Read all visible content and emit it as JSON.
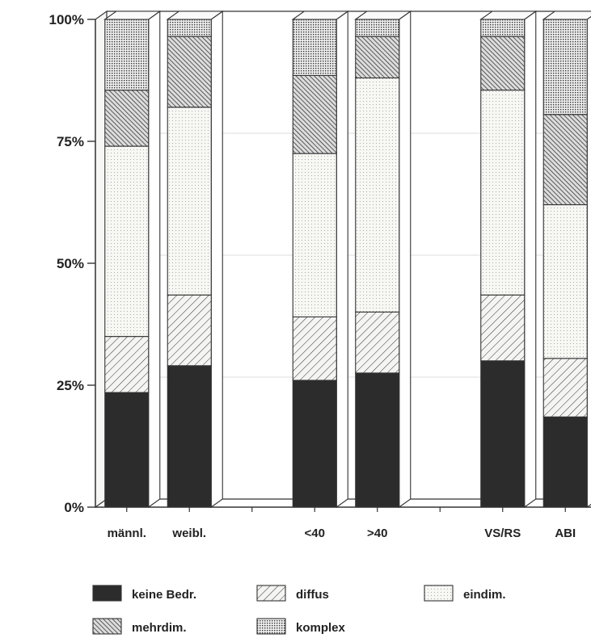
{
  "chart_data": {
    "type": "bar",
    "stacked": true,
    "normalized_percent": true,
    "style": "3d-stacked-columns",
    "ylim": [
      0,
      100
    ],
    "y_ticks": [
      "0%",
      "25%",
      "50%",
      "75%",
      "100%"
    ],
    "categories": [
      "männl.",
      "weibl.",
      "",
      "<40",
      ">40",
      "",
      "VS/RS",
      "ABI"
    ],
    "series": [
      {
        "name": "keine Bedr.",
        "pattern": "solid-dark",
        "values": [
          23.5,
          29,
          null,
          26,
          27.5,
          null,
          30,
          18.5
        ]
      },
      {
        "name": "diffus",
        "pattern": "diag-light",
        "values": [
          11.5,
          14.5,
          null,
          13,
          12.5,
          null,
          13.5,
          12
        ]
      },
      {
        "name": "eindim.",
        "pattern": "dots-light",
        "values": [
          39,
          38.5,
          null,
          33.5,
          48,
          null,
          42,
          31.5
        ]
      },
      {
        "name": "mehrdim.",
        "pattern": "diag-dense",
        "values": [
          11.5,
          14.5,
          null,
          16,
          8.5,
          null,
          11,
          18.5
        ]
      },
      {
        "name": "komplex",
        "pattern": "dots-dense",
        "values": [
          14.5,
          3.5,
          null,
          11.5,
          3.5,
          null,
          3.5,
          19.5
        ]
      }
    ],
    "legend": {
      "placement": "bottom",
      "columns": 3
    },
    "grid": true
  }
}
